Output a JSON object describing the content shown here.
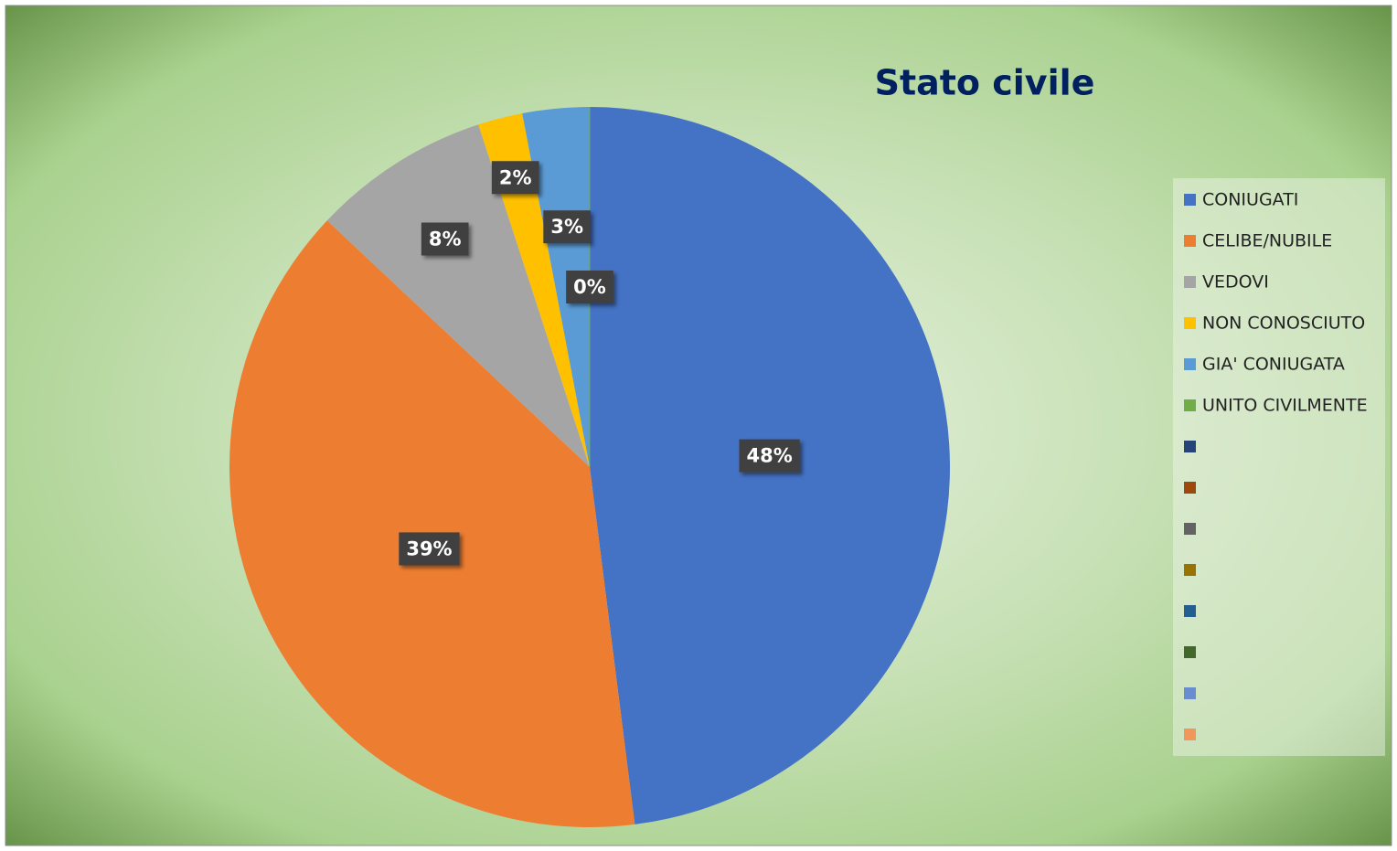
{
  "chart_data": {
    "type": "pie",
    "title": "Stato civile",
    "categories": [
      "CONIUGATI",
      "CELIBE/NUBILE",
      "VEDOVI",
      "NON CONOSCIUTO",
      "GIA' CONIUGATA",
      "UNITO CIVILMENTE",
      null,
      null,
      null,
      null,
      null,
      null,
      null,
      null
    ],
    "values": [
      48,
      39,
      8,
      2,
      3,
      0,
      null,
      null,
      null,
      null,
      null,
      null,
      null,
      null
    ],
    "value_labels": [
      "48%",
      "39%",
      "8%",
      "2%",
      "3%",
      "0%",
      null,
      null,
      null,
      null,
      null,
      null,
      null,
      null
    ],
    "colors": [
      "#4472c4",
      "#ed7d31",
      "#a5a5a5",
      "#ffc000",
      "#5b9bd5",
      "#70ad47",
      "#264478",
      "#9e480e",
      "#636363",
      "#997300",
      "#255e91",
      "#43682b",
      "#698ed0",
      "#f1975a"
    ],
    "legend": "right"
  }
}
